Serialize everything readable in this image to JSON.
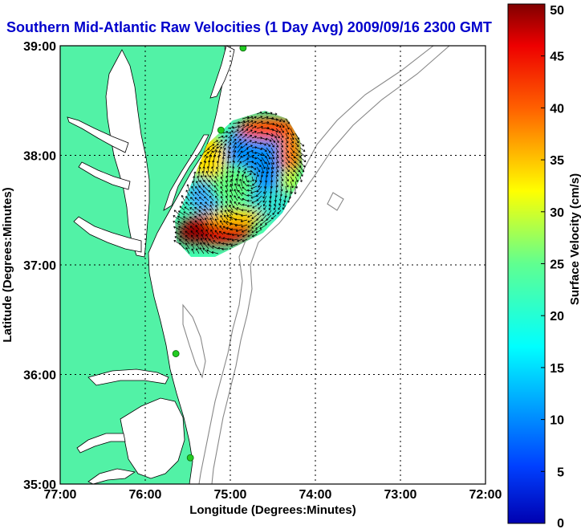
{
  "title": "Southern Mid-Atlantic Raw Velocities (1 Day Avg) 2009/09/16 2300 GMT",
  "axes": {
    "xlabel": "Longitude (Degrees:Minutes)",
    "ylabel": "Latitude (Degrees:Minutes)",
    "x_ticks": [
      "77:00",
      "76:00",
      "75:00",
      "74:00",
      "73:00",
      "72:00"
    ],
    "y_ticks": [
      "39:00",
      "38:00",
      "37:00",
      "36:00",
      "35:00"
    ]
  },
  "colorbar": {
    "label": "Surface Velocity (cm/s)",
    "ticks": [
      "0",
      "5",
      "10",
      "15",
      "20",
      "25",
      "30",
      "35",
      "40",
      "45",
      "50"
    ],
    "range": [
      0,
      50
    ]
  },
  "colors": {
    "land": "#52f2a6",
    "water": "#ffffff",
    "title": "#0000cc",
    "bathymetry": "#888888",
    "station": "#22cc22"
  },
  "chart_data": {
    "type": "heatmap",
    "lon_range": [
      -77,
      -72
    ],
    "lat_range": [
      35,
      39
    ],
    "velocity_range_cm_s": [
      0,
      50
    ],
    "stations": [
      {
        "lon": -74.85,
        "lat": 38.98
      },
      {
        "lon": -75.11,
        "lat": 38.23
      },
      {
        "lon": -75.64,
        "lat": 36.19
      },
      {
        "lon": -75.47,
        "lat": 35.24
      }
    ]
  }
}
